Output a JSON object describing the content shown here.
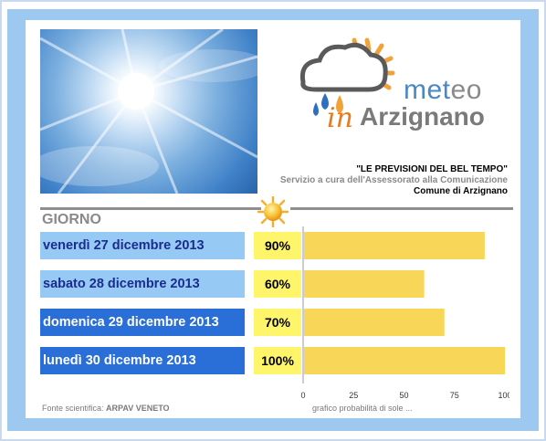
{
  "logo": {
    "meteo_part1": "met",
    "meteo_part2": "eo",
    "in_word": "in",
    "town_word": "Arzignano"
  },
  "tagline": {
    "line1": "\"LE PREVISIONI DEL BEL TEMPO\"",
    "line2": "Servizio a cura dell'Assessorato alla Comunicazione",
    "line3": "Comune di Arzignano"
  },
  "header": {
    "column_label": "GIORNO",
    "sun_icon": "sun-icon"
  },
  "forecast": [
    {
      "day": "venerdì 27 dicembre 2013",
      "percent_label": "90%",
      "style": "light"
    },
    {
      "day": "sabato 28 dicembre 2013",
      "percent_label": "60%",
      "style": "light"
    },
    {
      "day": "domenica 29 dicembre 2013",
      "percent_label": "70%",
      "style": "dark"
    },
    {
      "day": "lunedì 30 dicembre 2013",
      "percent_label": "100%",
      "style": "dark"
    }
  ],
  "colors": {
    "bar": "#f7d658",
    "percent_box": "#fff56b",
    "day_light": "#97c9f5",
    "day_dark": "#2a6ed8",
    "frame": "#9dc8f0"
  },
  "chart_data": {
    "type": "bar",
    "orientation": "horizontal",
    "categories": [
      "venerdì 27 dicembre 2013",
      "sabato 28 dicembre 2013",
      "domenica 29 dicembre 2013",
      "lunedì 30 dicembre 2013"
    ],
    "values": [
      90,
      60,
      70,
      100
    ],
    "xlim": [
      0,
      100
    ],
    "xticks": [
      "0",
      "25",
      "50",
      "75",
      "100"
    ],
    "grid": false,
    "caption": "grafico probabilità di sole ..."
  },
  "footer": {
    "source_label": "Fonte scientifica:",
    "source_value": "ARPAV VENETO",
    "chart_note": "grafico probabilità di sole ..."
  }
}
